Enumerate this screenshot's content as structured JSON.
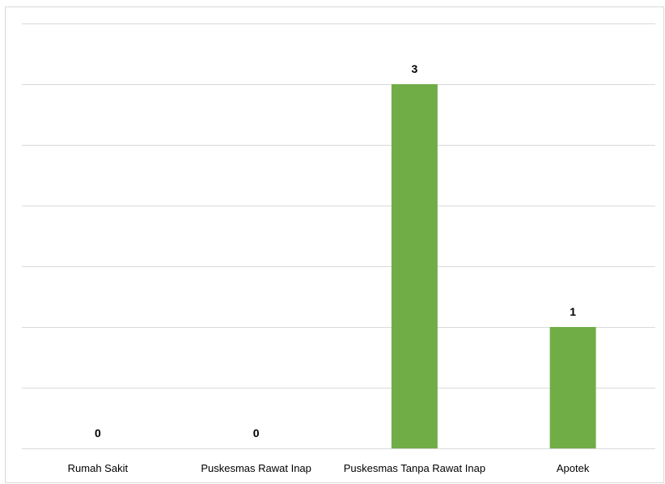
{
  "chart_data": {
    "type": "bar",
    "categories": [
      "Rumah Sakit",
      "Puskesmas Rawat Inap",
      "Puskesmas Tanpa Rawat Inap",
      "Apotek"
    ],
    "values": [
      0,
      0,
      3,
      1
    ],
    "data_labels": [
      "0",
      "0",
      "3",
      "1"
    ],
    "title": "",
    "xlabel": "",
    "ylabel": "",
    "ylim": [
      0,
      3.5
    ],
    "gridlines": true,
    "y_tick_labels_visible": false,
    "legend": "none",
    "bar_color": "#70ad47"
  }
}
